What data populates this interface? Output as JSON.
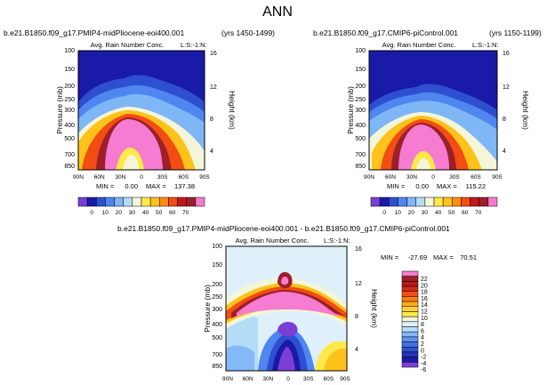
{
  "page_title": "ANN",
  "colors": {
    "levels": [
      "#7b3fd6",
      "#1a1aa8",
      "#2e4fd0",
      "#4f86f0",
      "#7fb6f5",
      "#b5dcf7",
      "#f3f6d8",
      "#ffe94a",
      "#ffc21a",
      "#ff8f0f",
      "#f24d12",
      "#c2181a",
      "#9c1f2a",
      "#f57cd0"
    ],
    "diff_levels": [
      "#7b3fd6",
      "#1a1aa8",
      "#2333b8",
      "#2e4fd0",
      "#3f6fe2",
      "#5a92f2",
      "#85b8f6",
      "#b5dcf7",
      "#dff0fa",
      "#f3f6d8",
      "#ffe94a",
      "#ffd23a",
      "#ffaa1c",
      "#ff7f10",
      "#f24d12",
      "#d42a16",
      "#b51a1c",
      "#9c1f2a",
      "#f57cd0"
    ]
  },
  "panels": [
    {
      "id": "top-left",
      "left_title": "b.e21.B1850.f09_g17.PMIP4-midPliocene-eoi400.001",
      "right_title": "(yrs 1450-1499)",
      "center_title": "Avg. Rain Number Conc.",
      "right_subtitle": "L:S:-1:N:",
      "ylabel": "Pressure (mb)",
      "ylabel_right": "Height (km)",
      "y_ticks": [
        "100",
        "150",
        "200",
        "250",
        "300",
        "400",
        "500",
        "700",
        "850"
      ],
      "height_ticks": [
        "16",
        "12",
        "8",
        "4"
      ],
      "x_ticks": [
        "90N",
        "60N",
        "30N",
        "0",
        "30S",
        "60S",
        "90S"
      ],
      "min_label": "MIN =",
      "min_value": "0.00",
      "max_label": "MAX =",
      "max_value": "137.38",
      "colorbar_ticks": [
        "0",
        "10",
        "20",
        "30",
        "40",
        "50",
        "60",
        "70"
      ]
    },
    {
      "id": "top-right",
      "left_title": "b.e21.B1850.f09_g17.CMIP6-piControl.001",
      "right_title": "(yrs 1150-1199)",
      "center_title": "Avg. Rain Number Conc.",
      "right_subtitle": "L:S:-1:N:",
      "ylabel": "Pressure (mb)",
      "ylabel_right": "Height (km)",
      "y_ticks": [
        "100",
        "150",
        "200",
        "250",
        "300",
        "400",
        "500",
        "700",
        "850"
      ],
      "height_ticks": [
        "16",
        "12",
        "8",
        "4"
      ],
      "x_ticks": [
        "90N",
        "60N",
        "30N",
        "0",
        "30S",
        "60S",
        "90S"
      ],
      "min_label": "MIN =",
      "min_value": "0.00",
      "max_label": "MAX =",
      "max_value": "115.22",
      "colorbar_ticks": [
        "0",
        "10",
        "20",
        "30",
        "40",
        "50",
        "60",
        "70"
      ]
    },
    {
      "id": "bottom",
      "left_title": "b.e21.B1850.f09_g17.PMIP4-midPliocene-eoi400.001 - b.e21.B1850.f09_g17.CMIP6-piControl.001",
      "center_title": "Avg. Rain Number Conc.",
      "right_subtitle": "L:S:-1:N:",
      "ylabel": "Pressure (mb)",
      "ylabel_right": "Height (km)",
      "y_ticks": [
        "100",
        "150",
        "200",
        "250",
        "300",
        "400",
        "500",
        "700",
        "850"
      ],
      "height_ticks": [
        "16",
        "12",
        "8",
        "4"
      ],
      "x_ticks": [
        "90N",
        "60N",
        "30N",
        "0",
        "30S",
        "60S",
        "90S"
      ],
      "min_label": "MIN =",
      "min_value": "-27.69",
      "max_label": "MAX =",
      "max_value": "70.51",
      "colorbar_ticks": [
        "22",
        "20",
        "18",
        "16",
        "14",
        "12",
        "10",
        "8",
        "6",
        "4",
        "2",
        "0",
        "-2",
        "-4",
        "-6"
      ]
    }
  ],
  "chart_data": [
    {
      "type": "heatmap",
      "title": "Avg. Rain Number Conc.",
      "xlabel": "",
      "ylabel": "Pressure (mb)",
      "x_ticks": [
        "90N",
        "60N",
        "30N",
        "0",
        "30S",
        "60S",
        "90S"
      ],
      "y_ticks": [
        100,
        150,
        200,
        250,
        300,
        400,
        500,
        700,
        850
      ],
      "value_range": [
        0.0,
        137.38
      ],
      "colorbar_levels": [
        0,
        10,
        20,
        30,
        40,
        50,
        60,
        70
      ]
    },
    {
      "type": "heatmap",
      "title": "Avg. Rain Number Conc.",
      "xlabel": "",
      "ylabel": "Pressure (mb)",
      "x_ticks": [
        "90N",
        "60N",
        "30N",
        "0",
        "30S",
        "60S",
        "90S"
      ],
      "y_ticks": [
        100,
        150,
        200,
        250,
        300,
        400,
        500,
        700,
        850
      ],
      "value_range": [
        0.0,
        115.22
      ],
      "colorbar_levels": [
        0,
        10,
        20,
        30,
        40,
        50,
        60,
        70
      ]
    },
    {
      "type": "heatmap",
      "title": "Avg. Rain Number Conc.",
      "xlabel": "",
      "ylabel": "Pressure (mb)",
      "x_ticks": [
        "90N",
        "60N",
        "30N",
        "0",
        "30S",
        "60S",
        "90S"
      ],
      "y_ticks": [
        100,
        150,
        200,
        250,
        300,
        400,
        500,
        700,
        850
      ],
      "value_range": [
        -27.69,
        70.51
      ],
      "colorbar_levels": [
        -6,
        -4,
        -2,
        0,
        2,
        4,
        6,
        8,
        10,
        12,
        14,
        16,
        18,
        20,
        22
      ]
    }
  ]
}
